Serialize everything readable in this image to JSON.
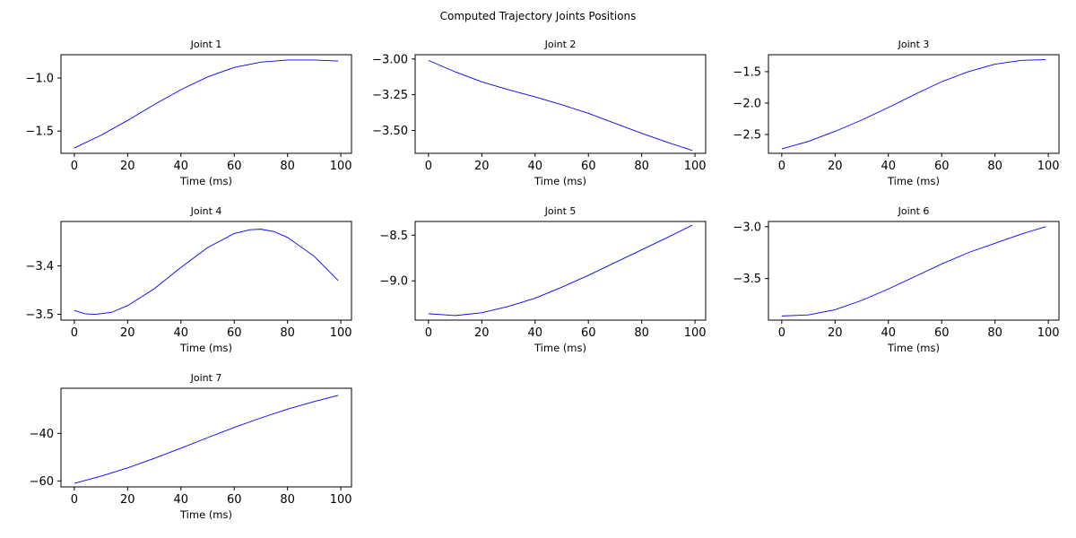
{
  "figure_title": "Computed Trajectory Joints Positions",
  "colors": {
    "line": "#0000ff",
    "axes": "#000000",
    "background": "#ffffff"
  },
  "chart_data": [
    {
      "type": "line",
      "title": "Joint 1",
      "xlabel": "Time (ms)",
      "ylabel": "",
      "xlim": [
        -5,
        104
      ],
      "ylim": [
        -1.71,
        -0.78
      ],
      "xticks": [
        0,
        20,
        40,
        60,
        80,
        100
      ],
      "yticks": [
        -1.5,
        -1.0
      ],
      "ytick_labels": [
        "−1.5",
        "−1.0"
      ],
      "grid": false,
      "series": [
        {
          "x": [
            0,
            10,
            20,
            30,
            40,
            50,
            60,
            70,
            80,
            90,
            99
          ],
          "y": [
            -1.66,
            -1.54,
            -1.4,
            -1.25,
            -1.11,
            -0.99,
            -0.9,
            -0.85,
            -0.83,
            -0.83,
            -0.84
          ]
        }
      ]
    },
    {
      "type": "line",
      "title": "Joint 2",
      "xlabel": "Time (ms)",
      "ylabel": "",
      "xlim": [
        -5,
        104
      ],
      "ylim": [
        -3.66,
        -2.97
      ],
      "xticks": [
        0,
        20,
        40,
        60,
        80,
        100
      ],
      "yticks": [
        -3.5,
        -3.25,
        -3.0
      ],
      "ytick_labels": [
        "−3.50",
        "−3.25",
        "−3.00"
      ],
      "grid": false,
      "series": [
        {
          "x": [
            0,
            10,
            20,
            30,
            40,
            50,
            60,
            70,
            80,
            90,
            99
          ],
          "y": [
            -3.01,
            -3.09,
            -3.16,
            -3.215,
            -3.265,
            -3.32,
            -3.38,
            -3.45,
            -3.52,
            -3.585,
            -3.64
          ]
        }
      ]
    },
    {
      "type": "line",
      "title": "Joint 3",
      "xlabel": "Time (ms)",
      "ylabel": "",
      "xlim": [
        -5,
        104
      ],
      "ylim": [
        -2.8,
        -1.23
      ],
      "xticks": [
        0,
        20,
        40,
        60,
        80,
        100
      ],
      "yticks": [
        -2.5,
        -2.0,
        -1.5
      ],
      "ytick_labels": [
        "−2.5",
        "−2.0",
        "−1.5"
      ],
      "grid": false,
      "series": [
        {
          "x": [
            0,
            10,
            20,
            30,
            40,
            50,
            60,
            70,
            80,
            90,
            99
          ],
          "y": [
            -2.73,
            -2.61,
            -2.45,
            -2.27,
            -2.07,
            -1.86,
            -1.66,
            -1.5,
            -1.38,
            -1.32,
            -1.31
          ]
        }
      ]
    },
    {
      "type": "line",
      "title": "Joint 4",
      "xlabel": "Time (ms)",
      "ylabel": "",
      "xlim": [
        -5,
        104
      ],
      "ylim": [
        -3.512,
        -3.308
      ],
      "xticks": [
        0,
        20,
        40,
        60,
        80,
        100
      ],
      "yticks": [
        -3.5,
        -3.4
      ],
      "ytick_labels": [
        "−3.5",
        "−3.4"
      ],
      "grid": false,
      "series": [
        {
          "x": [
            0,
            4,
            8,
            14,
            20,
            30,
            40,
            50,
            60,
            66,
            70,
            75,
            80,
            90,
            99
          ],
          "y": [
            -3.492,
            -3.499,
            -3.5,
            -3.496,
            -3.482,
            -3.447,
            -3.403,
            -3.362,
            -3.333,
            -3.325,
            -3.324,
            -3.329,
            -3.341,
            -3.38,
            -3.43
          ]
        }
      ]
    },
    {
      "type": "line",
      "title": "Joint 5",
      "xlabel": "Time (ms)",
      "ylabel": "",
      "xlim": [
        -5,
        104
      ],
      "ylim": [
        -9.43,
        -8.35
      ],
      "xticks": [
        0,
        20,
        40,
        60,
        80,
        100
      ],
      "yticks": [
        -9.0,
        -8.5
      ],
      "ytick_labels": [
        "−9.0",
        "−8.5"
      ],
      "grid": false,
      "series": [
        {
          "x": [
            0,
            10,
            20,
            30,
            40,
            50,
            60,
            70,
            80,
            90,
            99
          ],
          "y": [
            -9.36,
            -9.38,
            -9.35,
            -9.28,
            -9.19,
            -9.07,
            -8.94,
            -8.8,
            -8.66,
            -8.52,
            -8.39
          ]
        }
      ]
    },
    {
      "type": "line",
      "title": "Joint 6",
      "xlabel": "Time (ms)",
      "ylabel": "",
      "xlim": [
        -5,
        104
      ],
      "ylim": [
        -3.9,
        -2.95
      ],
      "xticks": [
        0,
        20,
        40,
        60,
        80,
        100
      ],
      "yticks": [
        -3.5,
        -3.0
      ],
      "ytick_labels": [
        "−3.5",
        "−3.0"
      ],
      "grid": false,
      "series": [
        {
          "x": [
            0,
            10,
            20,
            30,
            40,
            50,
            60,
            70,
            80,
            90,
            99
          ],
          "y": [
            -3.86,
            -3.85,
            -3.8,
            -3.71,
            -3.6,
            -3.48,
            -3.36,
            -3.25,
            -3.16,
            -3.07,
            -3.0
          ]
        }
      ]
    },
    {
      "type": "line",
      "title": "Joint 7",
      "xlabel": "Time (ms)",
      "ylabel": "",
      "xlim": [
        -5,
        104
      ],
      "ylim": [
        -62.5,
        -21
      ],
      "xticks": [
        0,
        20,
        40,
        60,
        80,
        100
      ],
      "yticks": [
        -60,
        -40
      ],
      "ytick_labels": [
        "−60",
        "−40"
      ],
      "grid": false,
      "series": [
        {
          "x": [
            0,
            10,
            20,
            30,
            40,
            50,
            60,
            70,
            80,
            90,
            99
          ],
          "y": [
            -61.0,
            -58.0,
            -54.5,
            -50.5,
            -46.2,
            -41.8,
            -37.5,
            -33.5,
            -29.8,
            -26.6,
            -24.0
          ]
        }
      ]
    }
  ]
}
